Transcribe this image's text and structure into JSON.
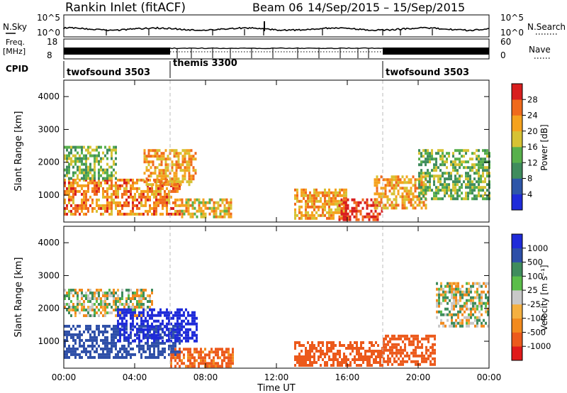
{
  "header": {
    "station": "Rankin Inlet (fitACF)",
    "beam": "Beam 06",
    "date_range": "14/Sep/2015 – 15/Sep/2015"
  },
  "panels": {
    "nsky": {
      "left_label": "N.Sky",
      "right_label": "N.Search",
      "left_ticks": [
        "10^5",
        "10^0"
      ],
      "right_ticks": [
        "10^5",
        "10^0"
      ]
    },
    "freq": {
      "left_label_1": "Freq.",
      "left_label_2": "[MHz]",
      "left_ticks": [
        "18",
        "8"
      ],
      "right_label": "Nave",
      "right_ticks": [
        "60",
        "0"
      ]
    },
    "cpid": {
      "label": "CPID",
      "segments": [
        {
          "name": "twofsound 3503",
          "start_h": 0,
          "end_h": 6
        },
        {
          "name": "themis 3300",
          "start_h": 6,
          "end_h": 18
        },
        {
          "name": "twofsound 3503",
          "start_h": 18,
          "end_h": 24
        }
      ]
    }
  },
  "x_axis": {
    "label": "Time UT",
    "ticks": [
      "00:00",
      "04:00",
      "08:00",
      "12:00",
      "16:00",
      "20:00",
      "00:00"
    ]
  },
  "colors": {
    "power_scale": [
      "#1f2bd9",
      "#2e56a8",
      "#3f8c5d",
      "#58b04c",
      "#d6c234",
      "#f5a21e",
      "#f06a1c",
      "#d81e1e"
    ],
    "velocity_scale": [
      "#e01a1a",
      "#ec5a1c",
      "#f28a1e",
      "#f5b040",
      "#c8c8c8",
      "#5bbd4a",
      "#3f8c5d",
      "#2e4fa8",
      "#1f2bd9"
    ],
    "ground_scatter": "#c8c8c8"
  },
  "chart_data": [
    {
      "type": "heatmap",
      "ylabel": "Slant Range [km]",
      "xlabel": "",
      "ylim": [
        180,
        4500
      ],
      "xlim": [
        0,
        24
      ],
      "yticks": [
        "1000",
        "2000",
        "3000",
        "4000"
      ],
      "colorbar_label": "Power [dB]",
      "colorbar_ticks": [
        "4",
        "8",
        "12",
        "16",
        "20",
        "24",
        "28"
      ],
      "colorbar_range": [
        0,
        32
      ],
      "regions": [
        {
          "t0": 0.0,
          "t1": 6.5,
          "r0": 400,
          "r1": 1500,
          "value": 24
        },
        {
          "t0": 0.0,
          "t1": 3.0,
          "r0": 1500,
          "r1": 2500,
          "value": 14
        },
        {
          "t0": 4.5,
          "t1": 7.5,
          "r0": 1300,
          "r1": 2400,
          "value": 22
        },
        {
          "t0": 6.5,
          "t1": 9.5,
          "r0": 300,
          "r1": 900,
          "value": 20
        },
        {
          "t0": 13.0,
          "t1": 16.0,
          "r0": 250,
          "r1": 1200,
          "value": 22
        },
        {
          "t0": 15.5,
          "t1": 18.0,
          "r0": 250,
          "r1": 900,
          "value": 30
        },
        {
          "t0": 17.5,
          "t1": 20.5,
          "r0": 600,
          "r1": 1600,
          "value": 22
        },
        {
          "t0": 20.0,
          "t1": 24.0,
          "r0": 900,
          "r1": 2400,
          "value": 14
        }
      ]
    },
    {
      "type": "heatmap",
      "ylabel": "Slant Range [km]",
      "xlabel": "Time UT",
      "ylim": [
        180,
        4500
      ],
      "xlim": [
        0,
        24
      ],
      "yticks": [
        "1000",
        "2000",
        "3000",
        "4000"
      ],
      "colorbar_label": "Velocity [m s⁻¹]",
      "colorbar_ticks": [
        "1000",
        "500",
        "100",
        "25",
        "-25",
        "-100",
        "-500",
        "-1000"
      ],
      "regions": [
        {
          "t0": 0.0,
          "t1": 5.0,
          "r0": 1800,
          "r1": 2600,
          "value": 0
        },
        {
          "t0": 0.0,
          "t1": 6.5,
          "r0": 500,
          "r1": 1500,
          "value": 400
        },
        {
          "t0": 3.0,
          "t1": 7.5,
          "r0": 1000,
          "r1": 2000,
          "value": 800
        },
        {
          "t0": 6.0,
          "t1": 9.5,
          "r0": 250,
          "r1": 800,
          "value": -150
        },
        {
          "t0": 13.0,
          "t1": 18.0,
          "r0": 250,
          "r1": 1000,
          "value": -400
        },
        {
          "t0": 18.0,
          "t1": 21.0,
          "r0": 300,
          "r1": 1200,
          "value": -300
        },
        {
          "t0": 21.0,
          "t1": 24.0,
          "r0": 1500,
          "r1": 2800,
          "value": 0
        }
      ]
    }
  ]
}
